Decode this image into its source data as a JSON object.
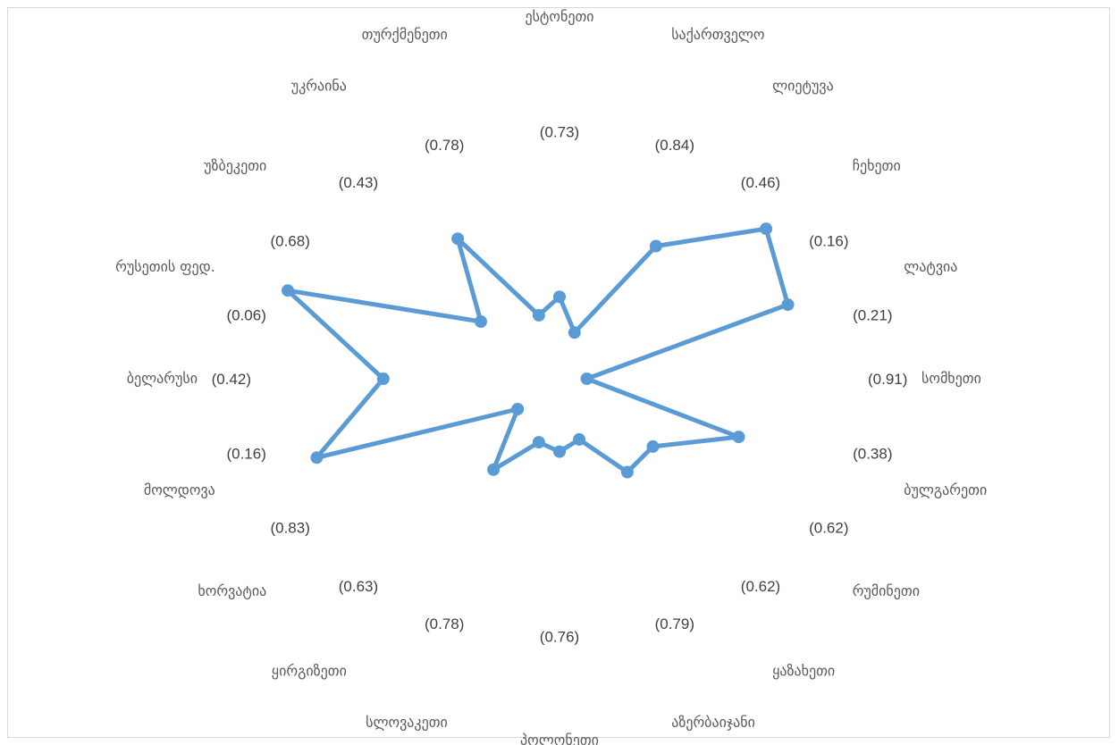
{
  "chart_data": {
    "type": "radar",
    "series_color": "#5b9bd5",
    "categories": [
      "ესტონეთი",
      "საქართველო",
      "ლიეტუვა",
      "ჩეხეთი",
      "ლატვია",
      "სომხეთი",
      "ბულგარეთი",
      "რუმინეთი",
      "ყაზახეთი",
      "აზერბაიჯანი",
      "პოლონეთი",
      "სლოვაკეთი",
      "ყირგიზეთი",
      "ხორვატია",
      "მოლდოვა",
      "ბელარუსი",
      "რუსეთის ფედ.",
      "უზბეკეთი",
      "უკრაინა",
      "თურქმენეთი"
    ],
    "values": [
      0.73,
      0.84,
      0.46,
      0.16,
      0.21,
      0.91,
      0.38,
      0.62,
      0.62,
      0.79,
      0.76,
      0.78,
      0.63,
      0.83,
      0.16,
      0.42,
      0.06,
      0.68,
      0.43,
      0.78
    ],
    "data_labels": [
      "(0.73)",
      "(0.84)",
      "(0.46)",
      "(0.16)",
      "(0.21)",
      "(0.91)",
      "(0.38)",
      "(0.62)",
      "(0.62)",
      "(0.79)",
      "(0.76)",
      "(0.78)",
      "(0.63)",
      "(0.83)",
      "(0.16)",
      "(0.42)",
      "(0.06)",
      "(0.68)",
      "(0.43)",
      "(0.78)"
    ],
    "rlim": [
      0,
      1
    ],
    "axis_reversed": true,
    "grid": false,
    "legend": "none"
  }
}
